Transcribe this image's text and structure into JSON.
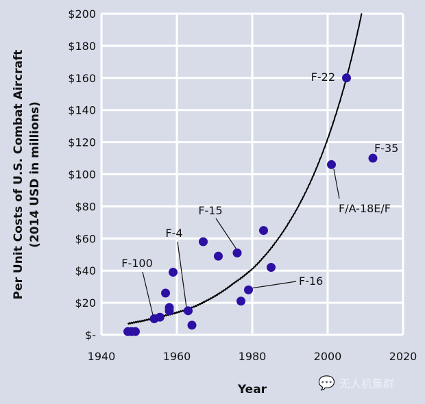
{
  "chart_data": {
    "type": "scatter",
    "title": "",
    "xlabel": "Year",
    "ylabel": "Per Unit Costs of U.S. Combat Aircraft",
    "ylabel_sub": "(2014 USD in millions)",
    "xlim": [
      1940,
      2020
    ],
    "ylim": [
      0,
      200
    ],
    "grid": true,
    "x_ticks": [
      1940,
      1960,
      1980,
      2000,
      2020
    ],
    "x_tick_labels": [
      "1940",
      "1960",
      "1980",
      "2000",
      "2020"
    ],
    "y_ticks": [
      0,
      20,
      40,
      60,
      80,
      100,
      120,
      140,
      160,
      180,
      200
    ],
    "y_tick_labels": [
      "$-",
      "$20",
      "$40",
      "$60",
      "$80",
      "$100",
      "$120",
      "$140",
      "$160",
      "$180",
      "$200"
    ],
    "points": [
      {
        "x": 1947,
        "y": 2
      },
      {
        "x": 1948,
        "y": 2
      },
      {
        "x": 1949,
        "y": 2
      },
      {
        "x": 1954,
        "y": 10
      },
      {
        "x": 1955.5,
        "y": 11
      },
      {
        "x": 1957,
        "y": 26
      },
      {
        "x": 1958,
        "y": 17
      },
      {
        "x": 1958,
        "y": 15
      },
      {
        "x": 1959,
        "y": 39
      },
      {
        "x": 1963,
        "y": 15
      },
      {
        "x": 1964,
        "y": 6
      },
      {
        "x": 1967,
        "y": 58
      },
      {
        "x": 1971,
        "y": 49
      },
      {
        "x": 1976,
        "y": 51
      },
      {
        "x": 1977,
        "y": 21
      },
      {
        "x": 1979,
        "y": 28
      },
      {
        "x": 1983,
        "y": 65
      },
      {
        "x": 1985,
        "y": 42
      },
      {
        "x": 2001,
        "y": 106
      },
      {
        "x": 2005,
        "y": 160
      },
      {
        "x": 2012,
        "y": 110
      }
    ],
    "trend": {
      "type": "exponential",
      "x": [
        1947,
        1955,
        1963,
        1970,
        1975,
        1980,
        1985,
        1990,
        1995,
        2000,
        2005,
        2009
      ],
      "y": [
        7,
        11,
        16,
        24,
        32,
        41,
        54,
        71,
        93,
        122,
        160,
        200
      ]
    },
    "annotations": [
      {
        "text": "F-100",
        "point": 3
      },
      {
        "text": "F-4",
        "point": 9
      },
      {
        "text": "F-15",
        "point": 13
      },
      {
        "text": "F-16",
        "point": 15
      },
      {
        "text": "F/A-18E/F",
        "point": 18
      },
      {
        "text": "F-22",
        "point": 19
      },
      {
        "text": "F-35",
        "point": 20
      }
    ],
    "colors": {
      "point": "#2c0fa3",
      "line": "#000000",
      "grid": "#ffffff",
      "background": "#d7dce8"
    }
  },
  "watermark": {
    "text": "无人机集群",
    "icon": "wechat-icon"
  }
}
